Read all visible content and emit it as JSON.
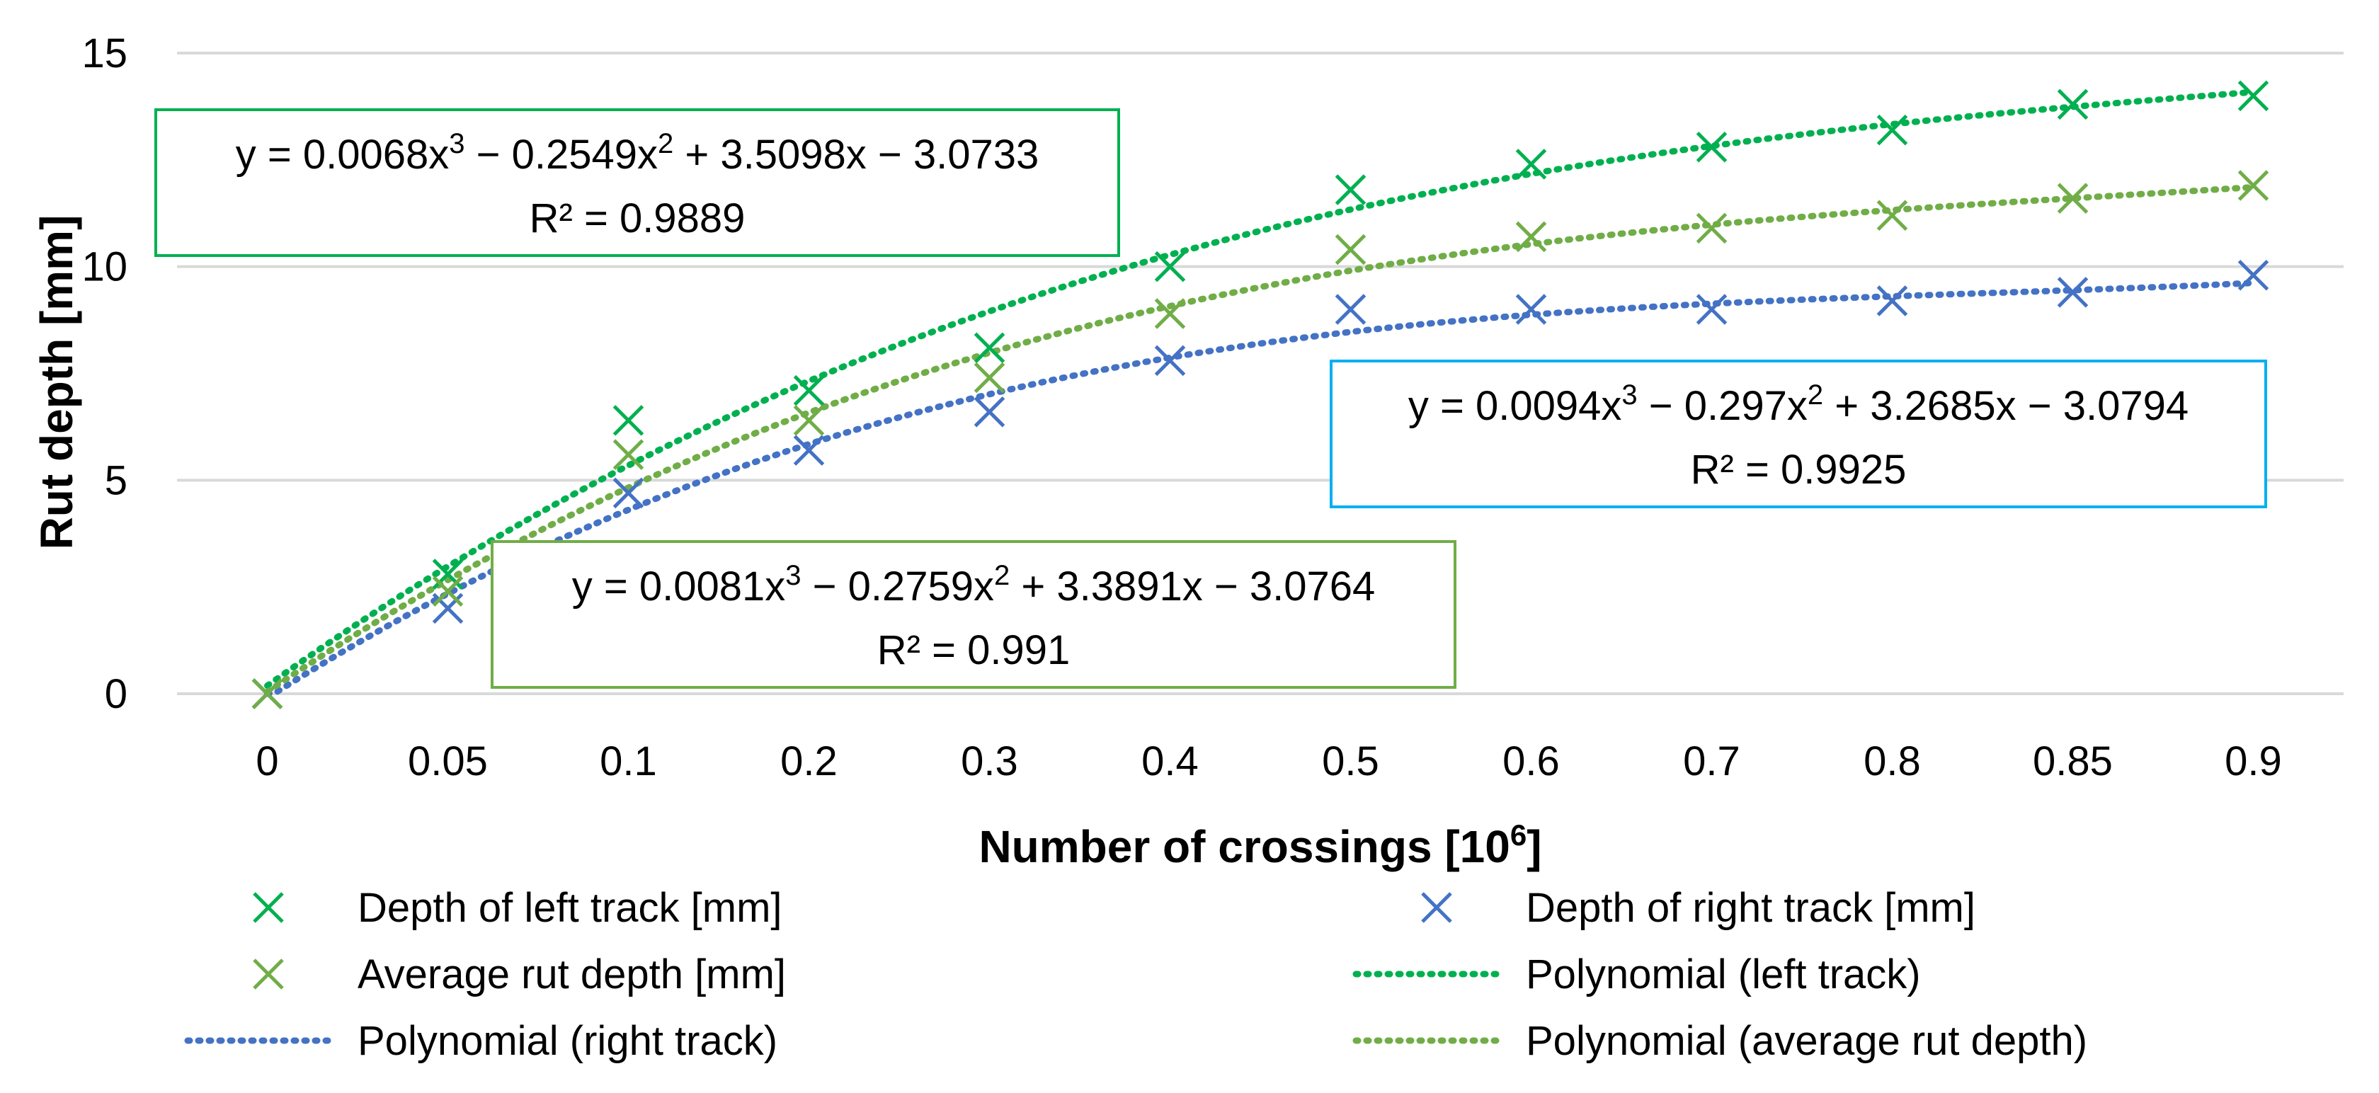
{
  "chart_data": {
    "type": "scatter",
    "xlabel": "Number of crossings [10",
    "xlabel_exp": "6",
    "xlabel_end": "]",
    "ylabel": "Rut depth [mm]",
    "ylim": [
      0,
      15
    ],
    "yticks": [
      "0",
      "5",
      "10",
      "15"
    ],
    "categories": [
      "0",
      "0.05",
      "0.1",
      "0.2",
      "0.3",
      "0.4",
      "0.5",
      "0.6",
      "0.7",
      "0.8",
      "0.85",
      "0.9"
    ],
    "grid": true,
    "series": [
      {
        "name": "Depth of left track [mm]",
        "color": "#00b050",
        "marker": "x",
        "values": [
          0,
          2.8,
          6.4,
          7.1,
          8.1,
          10.0,
          11.8,
          12.4,
          12.8,
          13.2,
          13.8,
          14.0
        ]
      },
      {
        "name": "Depth of right track [mm]",
        "color": "#4472c4",
        "marker": "x",
        "values": [
          0,
          2.0,
          4.7,
          5.7,
          6.6,
          7.8,
          9.0,
          9.0,
          9.0,
          9.2,
          9.4,
          9.8
        ]
      },
      {
        "name": "Average rut depth [mm]",
        "color": "#70ad47",
        "marker": "x",
        "values": [
          0,
          2.4,
          5.6,
          6.4,
          7.4,
          8.9,
          10.4,
          10.7,
          10.9,
          11.2,
          11.6,
          11.9
        ]
      }
    ],
    "trendlines": [
      {
        "name": "Polynomial (left track)",
        "color": "#00b050",
        "coef": [
          0.0068,
          -0.2549,
          3.5098,
          -3.0733
        ]
      },
      {
        "name": "Polynomial (right track)",
        "color": "#4472c4",
        "coef": [
          0.0094,
          -0.297,
          3.2685,
          -3.0794
        ]
      },
      {
        "name": "Polynomial (average rut depth)",
        "color": "#70ad47",
        "coef": [
          0.0081,
          -0.2759,
          3.3891,
          -3.0764
        ]
      }
    ],
    "annotations": [
      {
        "name": "left",
        "border": "#00b050",
        "eq_a": "y = 0.0068x",
        "eq_b": " − 0.2549x",
        "eq_c": " + 3.5098x − 3.0733",
        "exp3": "3",
        "exp2": "2",
        "r2": "R² = 0.9889"
      },
      {
        "name": "right",
        "border": "#00b0f0",
        "eq_a": "y = 0.0094x",
        "eq_b": " − 0.297x",
        "eq_c": " + 3.2685x − 3.0794",
        "exp3": "3",
        "exp2": "2",
        "r2": "R² = 0.9925"
      },
      {
        "name": "average",
        "border": "#70ad47",
        "eq_a": "y = 0.0081x",
        "eq_b": " − 0.2759x",
        "eq_c": " + 3.3891x − 3.0764",
        "exp3": "3",
        "exp2": "2",
        "r2": "R² = 0.991"
      }
    ],
    "legend": [
      {
        "label": "Depth of left track [mm]",
        "kind": "marker",
        "color": "#00b050"
      },
      {
        "label": "Depth of right track [mm]",
        "kind": "marker",
        "color": "#4472c4"
      },
      {
        "label": "Average rut depth [mm]",
        "kind": "marker",
        "color": "#70ad47"
      },
      {
        "label": "Polynomial (left track)",
        "kind": "line",
        "color": "#00b050"
      },
      {
        "label": "Polynomial (right track)",
        "kind": "line",
        "color": "#4472c4"
      },
      {
        "label": "Polynomial (average rut depth)",
        "kind": "line",
        "color": "#70ad47"
      }
    ],
    "legend_position": "bottom"
  }
}
